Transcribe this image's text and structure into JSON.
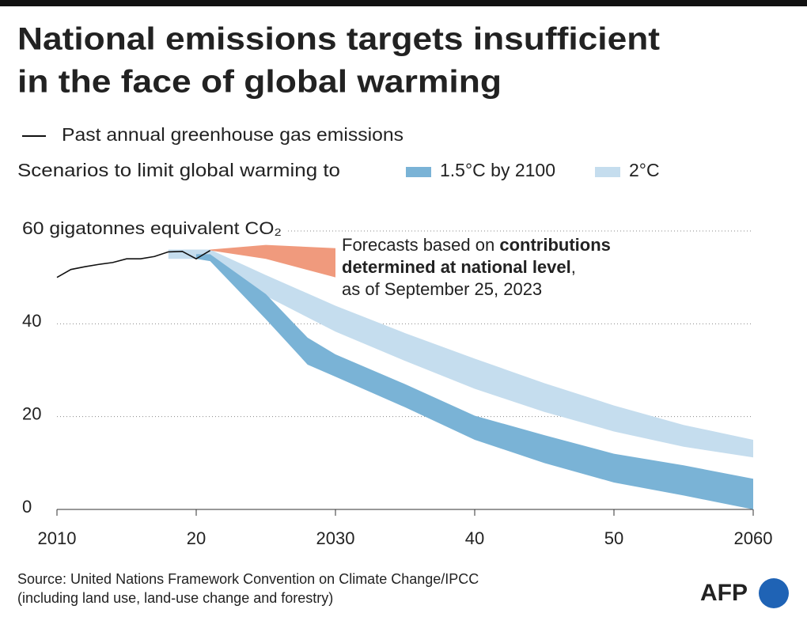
{
  "chart_data": {
    "type": "band-line",
    "title": [
      "National emissions targets insufficient",
      "in the face of global warming"
    ],
    "legend_line": "Past annual greenhouse gas emissions",
    "legend_heading": "Scenarios to limit global warming to",
    "line": {
      "color": "#111111",
      "x": [
        2010,
        2011,
        2012,
        2013,
        2014,
        2015,
        2016,
        2017,
        2018,
        2019,
        2020,
        2021
      ],
      "values": [
        50,
        51.7,
        52.3,
        52.8,
        53.2,
        54,
        54,
        54.5,
        55.5,
        55.6,
        54,
        55.8
      ]
    },
    "bands": [
      {
        "name": "2°C",
        "color": "#c5ddee",
        "legend": true,
        "x": [
          2018,
          2020,
          2021,
          2025,
          2030,
          2035,
          2040,
          2045,
          2050,
          2055,
          2060
        ],
        "lower": [
          54,
          54,
          54.5,
          46,
          38.3,
          32,
          26,
          21,
          16.8,
          13.5,
          11.2
        ],
        "upper": [
          56,
          56,
          56,
          50.5,
          43.9,
          38,
          32.5,
          27.2,
          22.4,
          18.2,
          15
        ]
      },
      {
        "name": "1.5°C by 2100",
        "color": "#7ab3d6",
        "legend": true,
        "x": [
          2020,
          2021,
          2025,
          2028,
          2030,
          2035,
          2040,
          2045,
          2050,
          2055,
          2060
        ],
        "lower": [
          54,
          53.5,
          41,
          31.2,
          28.6,
          22,
          15,
          10,
          5.8,
          3,
          0
        ],
        "upper": [
          55,
          55,
          46.4,
          37,
          33.4,
          27,
          20.2,
          16,
          12,
          9.5,
          6.6
        ]
      },
      {
        "name": null,
        "color": "#f09a7d",
        "legend": false,
        "x": [
          2021,
          2025,
          2030
        ],
        "lower": [
          55.8,
          54,
          50
        ],
        "upper": [
          56,
          57,
          56.3
        ]
      }
    ],
    "annotation": [
      [
        {
          "text": "Forecasts based on ",
          "bold": false
        },
        {
          "text": "contributions",
          "bold": true
        }
      ],
      [
        {
          "text": "determined at national level",
          "bold": true
        },
        {
          "text": ",",
          "bold": false
        }
      ],
      [
        {
          "text": "as of September 25, 2023",
          "bold": false
        }
      ]
    ],
    "xlim": [
      2010,
      2060
    ],
    "xticks": [
      2010,
      {
        "value": 2020,
        "label": "20"
      },
      2030,
      {
        "value": 2040,
        "label": "40"
      },
      {
        "value": 2050,
        "label": "50"
      },
      2060
    ],
    "ylim": [
      0,
      60
    ],
    "yticks": [
      0,
      20,
      40,
      {
        "value": 60,
        "label": "60 gigatonnes equivalent CO₂"
      }
    ],
    "grid": true,
    "source": [
      "Source: United Nations Framework Convention on Climate Change/IPCC",
      "(including land use, land-use change and forestry)"
    ],
    "logo": "AFP"
  }
}
